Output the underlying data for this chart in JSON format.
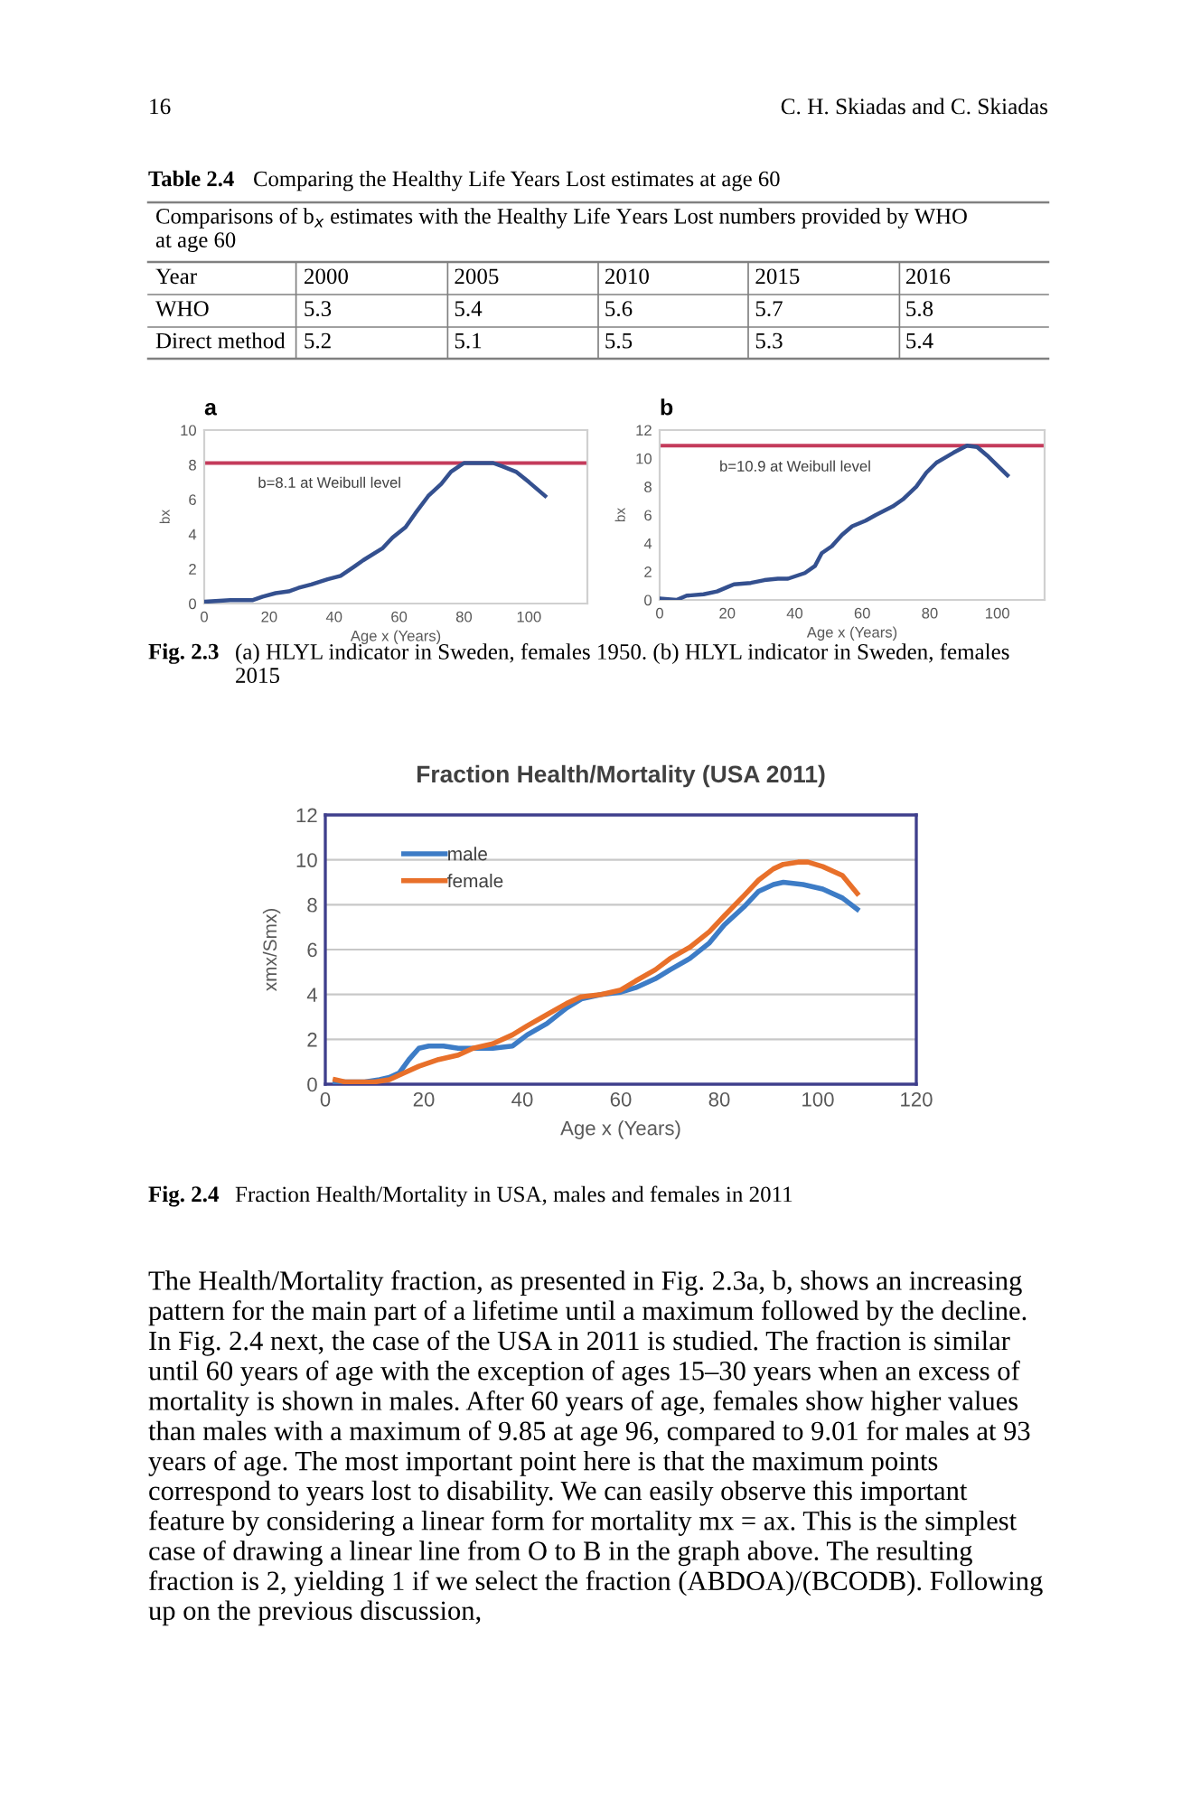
{
  "chart_data": [
    {
      "type": "heatmap",
      "title": "Table 2.4",
      "subtitle": "Comparing the Healthy Life Years Lost estimates at age 60",
      "annotations": [
        "16",
        "C. H. Skiadas and C. Skiadas",
        "Comparisons of b$_{x}$ estimates with the Healthy Life Years Lost numbers provided by WHO at age 60"
      ],
      "xlabel": "Year",
      "categories": [
        "2000",
        "2005",
        "2010",
        "2015",
        "2016"
      ],
      "y_categories": [
        "WHO",
        "Direct method"
      ],
      "cells": [
        [
          5.3,
          5.4,
          5.6,
          5.7,
          5.8
        ],
        [
          5.2,
          5.1,
          5.5,
          5.3,
          5.4
        ]
      ],
      "data_labels": true
    },
    {
      "type": "line",
      "title": "a",
      "xlabel": "Age x (Years)",
      "ylabel": "bx",
      "xlim": [
        0,
        118
      ],
      "xticks": [
        0,
        20,
        40,
        60,
        80,
        100
      ],
      "ylim": [
        0,
        10
      ],
      "yticks": [
        0,
        2,
        4,
        6,
        8,
        10
      ],
      "grid": false,
      "marker": "none",
      "line_style": "solid",
      "x": [
        0,
        8,
        15,
        18,
        22,
        26,
        29,
        33,
        38,
        42,
        46,
        49,
        55,
        58,
        62,
        65,
        69,
        73,
        76,
        80,
        83,
        89,
        92,
        96,
        100,
        105
      ],
      "series": [
        {
          "color": "#34508f",
          "values": [
            0.1,
            0.2,
            0.2,
            0.4,
            0.6,
            0.7,
            0.9,
            1.1,
            1.4,
            1.6,
            2.1,
            2.5,
            3.2,
            3.8,
            4.4,
            5.2,
            6.2,
            6.9,
            7.6,
            8.1,
            8.1,
            8.1,
            7.9,
            7.6,
            7.0,
            6.2
          ]
        }
      ],
      "ref_lines": [
        {
          "axis": "y",
          "value": 8.1,
          "label": "b=8.1 at Weibull level",
          "color": "#c43b5b"
        }
      ]
    },
    {
      "type": "line",
      "title": "b",
      "xlabel": "Age x (Years)",
      "ylabel": "bx",
      "xlim": [
        0,
        114
      ],
      "xticks": [
        0,
        20,
        40,
        60,
        80,
        100
      ],
      "ylim": [
        0,
        12
      ],
      "yticks": [
        0,
        2,
        4,
        6,
        8,
        10,
        12
      ],
      "grid": false,
      "marker": "none",
      "line_style": "solid",
      "x": [
        0,
        5,
        8,
        13,
        17,
        20,
        22,
        27,
        31,
        35,
        38,
        43,
        46,
        48,
        51,
        54,
        57,
        61,
        64,
        69,
        72,
        76,
        79,
        82,
        87,
        91,
        94,
        97,
        103
      ],
      "series": [
        {
          "color": "#34508f",
          "values": [
            0.1,
            0.0,
            0.3,
            0.4,
            0.6,
            0.9,
            1.1,
            1.2,
            1.4,
            1.5,
            1.5,
            1.9,
            2.4,
            3.3,
            3.8,
            4.6,
            5.2,
            5.6,
            6.0,
            6.6,
            7.1,
            8.0,
            9.0,
            9.7,
            10.4,
            10.9,
            10.8,
            10.2,
            8.8
          ]
        }
      ],
      "ref_lines": [
        {
          "axis": "y",
          "value": 10.9,
          "label": "b=10.9 at Weibull level",
          "color": "#c43b5b"
        }
      ],
      "annotations": [
        "Fig. 2.3",
        "(a) HLYL indicator in Sweden, females 1950. (b) HLYL indicator in Sweden, females 2015"
      ]
    },
    {
      "type": "line",
      "title": "Fraction Health/Mortality (USA 2011)",
      "xlabel": "Age x (Years)",
      "ylabel": "xmx/Smx)",
      "xlim": [
        0,
        120
      ],
      "xticks": [
        0,
        20,
        40,
        60,
        80,
        100,
        120
      ],
      "ylim": [
        0,
        12
      ],
      "yticks": [
        0,
        2,
        4,
        6,
        8,
        10,
        12
      ],
      "grid": "y",
      "legend": "top left",
      "marker": "none",
      "line_style": "solid",
      "series": [
        {
          "name": "male",
          "color": "#3d7cc6",
          "x": [
            2,
            4,
            8,
            11,
            13,
            15,
            17,
            19,
            21,
            24,
            27,
            30,
            34,
            38,
            41,
            45,
            49,
            52,
            56,
            60,
            63,
            67,
            70,
            74,
            78,
            81,
            85,
            88,
            91,
            93,
            97,
            101,
            105,
            108
          ],
          "values": [
            0.1,
            0.1,
            0.1,
            0.2,
            0.3,
            0.5,
            1.1,
            1.6,
            1.7,
            1.7,
            1.6,
            1.6,
            1.6,
            1.7,
            2.2,
            2.7,
            3.4,
            3.8,
            4.0,
            4.1,
            4.3,
            4.7,
            5.1,
            5.6,
            6.3,
            7.1,
            7.9,
            8.6,
            8.9,
            9.0,
            8.9,
            8.7,
            8.3,
            7.8
          ]
        },
        {
          "name": "female",
          "color": "#e8702a",
          "x": [
            2,
            4,
            10,
            13,
            16,
            19,
            23,
            27,
            30,
            34,
            38,
            41,
            45,
            49,
            52,
            56,
            60,
            63,
            67,
            70,
            74,
            78,
            81,
            85,
            88,
            91,
            93,
            96,
            98,
            101,
            105,
            108
          ],
          "values": [
            0.2,
            0.1,
            0.1,
            0.2,
            0.5,
            0.8,
            1.1,
            1.3,
            1.6,
            1.8,
            2.2,
            2.6,
            3.1,
            3.6,
            3.9,
            4.0,
            4.2,
            4.6,
            5.1,
            5.6,
            6.1,
            6.8,
            7.5,
            8.4,
            9.1,
            9.6,
            9.8,
            9.9,
            9.9,
            9.7,
            9.3,
            8.5
          ]
        }
      ],
      "annotations": [
        "Fig. 2.4",
        "Fraction Health/Mortality in USA, males and females in 2011",
        "The Health/Mortality fraction, as presented in Fig. 2.3a, b, shows an increasing pattern for the main part of a lifetime until a maximum followed by the decline. In Fig. 2.4 next, the case of the USA in 2011 is studied. The fraction is similar until 60 years of age with the exception of ages 15–30 years when an excess of mortality is shown in males. After 60 years of age, females show higher values than males with a maximum of 9.85 at age 96, compared to 9.01 for males at 93 years of age. The most important point here is that the maximum points correspond to years lost to disability. We can easily observe this important feature by considering a linear form for mortality mx = ax. This is the simplest case of drawing a linear line from O to B in the graph above. The resulting fraction is 2, yielding 1 if we select the fraction (ABDOA)/(BCODB). Following up on the previous discussion,"
      ]
    }
  ]
}
